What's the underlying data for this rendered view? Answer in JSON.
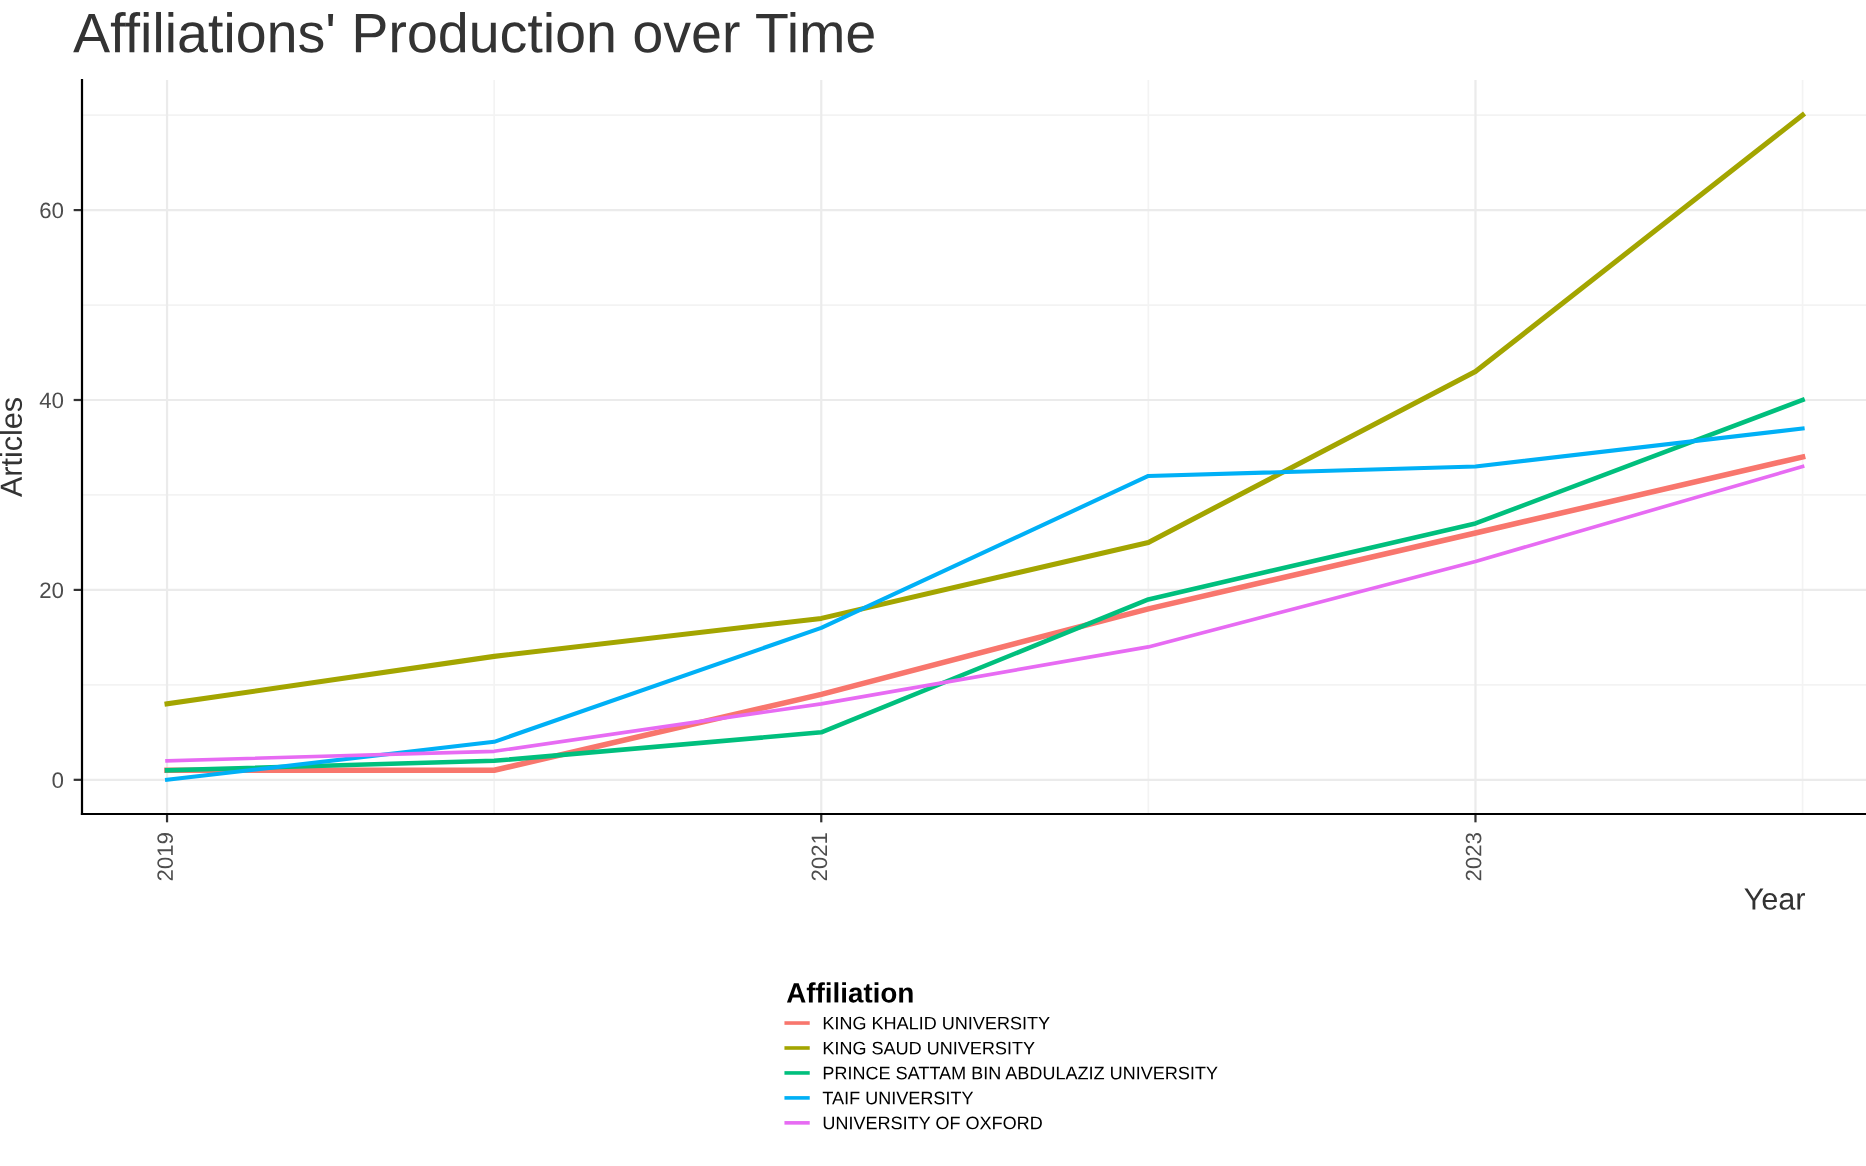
{
  "chart_data": {
    "type": "line",
    "title": "Affiliations' Production over Time",
    "xlabel": "Year",
    "ylabel": "Articles",
    "legend_title": "Affiliation",
    "x": [
      2019,
      2020,
      2021,
      2022,
      2023,
      2024
    ],
    "series": [
      {
        "name": "KING KHALID UNIVERSITY",
        "color": "#f8766d",
        "values": [
          1,
          1,
          9,
          18,
          26,
          34
        ]
      },
      {
        "name": "KING SAUD UNIVERSITY",
        "color": "#a3a500",
        "values": [
          8,
          13,
          17,
          25,
          43,
          70
        ]
      },
      {
        "name": "PRINCE SATTAM BIN ABDULAZIZ UNIVERSITY",
        "color": "#00bf7d",
        "values": [
          1,
          2,
          5,
          19,
          27,
          40
        ]
      },
      {
        "name": "TAIF UNIVERSITY",
        "color": "#00b0f6",
        "values": [
          0,
          4,
          16,
          32,
          33,
          37
        ]
      },
      {
        "name": "UNIVERSITY OF OXFORD",
        "color": "#e76bf3",
        "values": [
          2,
          3,
          8,
          14,
          23,
          33
        ]
      }
    ],
    "xlim": [
      2018.74,
      2024.2
    ],
    "xticks": [
      2019,
      2021,
      2023
    ],
    "ylim": [
      -3.6,
      73.7
    ],
    "yticks": [
      0,
      20,
      40,
      60
    ],
    "grid": true,
    "legend": "bottom",
    "marker": "none",
    "line_style": "solid"
  }
}
